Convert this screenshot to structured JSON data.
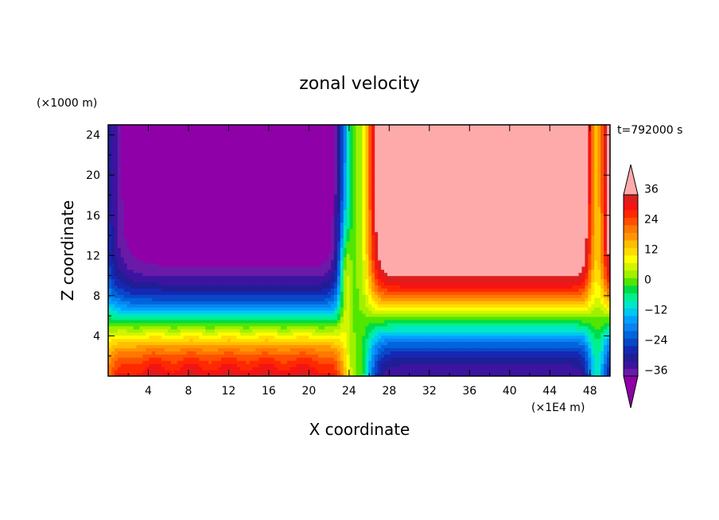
{
  "chart_data": {
    "type": "heatmap",
    "title": "zonal velocity",
    "xlabel": "X coordinate",
    "ylabel": "Z coordinate",
    "x_unit": "(×1E4 m)",
    "y_unit": "(×1000 m)",
    "time_label": "t=792000 s",
    "xlim": [
      0,
      50
    ],
    "ylim": [
      0,
      25
    ],
    "x_ticks": [
      "4",
      "8",
      "12",
      "16",
      "20",
      "24",
      "28",
      "32",
      "36",
      "40",
      "44",
      "48"
    ],
    "x_tick_values": [
      4,
      8,
      12,
      16,
      20,
      24,
      28,
      32,
      36,
      40,
      44,
      48
    ],
    "y_ticks": [
      "4",
      "8",
      "12",
      "16",
      "20",
      "24"
    ],
    "y_tick_values": [
      4,
      8,
      12,
      16,
      20,
      24
    ],
    "colorbar": {
      "levels": [
        -42,
        -39,
        -36,
        -33,
        -30,
        -27,
        -24,
        -21,
        -18,
        -15,
        -12,
        -9,
        -6,
        -3,
        0,
        3,
        6,
        9,
        12,
        15,
        18,
        21,
        24,
        27,
        30,
        33,
        36,
        39,
        42
      ],
      "tick_labels": [
        "36",
        "24",
        "12",
        "0",
        "-12",
        "-24",
        "-36"
      ],
      "tick_values": [
        36,
        24,
        12,
        0,
        -12,
        -24,
        -36
      ],
      "colors": [
        "#8f00a8",
        "#6a1aa8",
        "#3c14a0",
        "#1e1e96",
        "#1428b4",
        "#0a46c8",
        "#0064dc",
        "#0a82f0",
        "#00a0ff",
        "#00c8f0",
        "#00e6c8",
        "#00f08c",
        "#00dc46",
        "#50e600",
        "#a0f000",
        "#d2f500",
        "#ffff00",
        "#ffdc00",
        "#ffbe00",
        "#ff9600",
        "#ff7800",
        "#ff5000",
        "#ff2800",
        "#f51414",
        "#dc1e1e",
        "#ffaaaa"
      ],
      "extends": "both"
    },
    "field_description": "Two-cell zonal flow: negative (westward) aloft over x<23, positive (eastward) aloft over x>26; reversed near the surface.",
    "key_values": {
      "upper_left_min": -40,
      "upper_right_max": 40,
      "surface_left_max": 36,
      "surface_right_min": -38
    }
  }
}
